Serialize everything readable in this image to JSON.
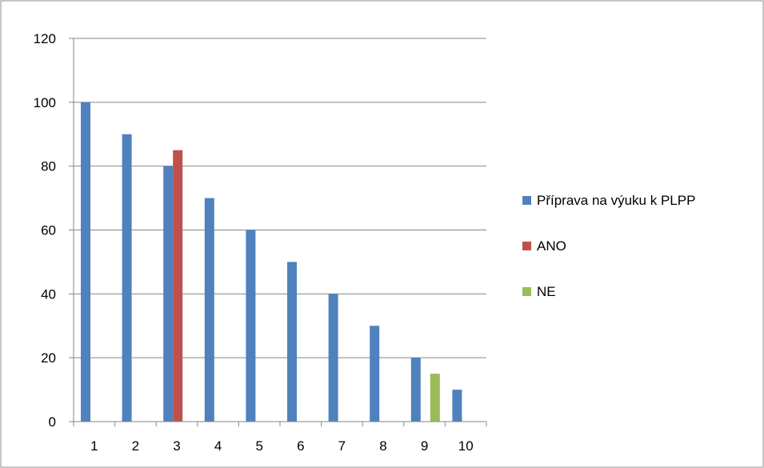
{
  "chart_data": {
    "type": "bar",
    "categories": [
      "1",
      "2",
      "3",
      "4",
      "5",
      "6",
      "7",
      "8",
      "9",
      "10"
    ],
    "series": [
      {
        "name": "Příprava na výuku k PLPP",
        "color": "#4f81bd",
        "values": [
          100,
          90,
          80,
          70,
          60,
          50,
          40,
          30,
          20,
          10
        ]
      },
      {
        "name": "ANO",
        "color": "#c0504d",
        "values": [
          null,
          null,
          85,
          null,
          null,
          null,
          null,
          null,
          null,
          null
        ]
      },
      {
        "name": "NE",
        "color": "#9bbb59",
        "values": [
          null,
          null,
          null,
          null,
          null,
          null,
          null,
          null,
          15,
          null
        ]
      }
    ],
    "y_ticks": [
      "0",
      "20",
      "40",
      "60",
      "80",
      "100",
      "120"
    ],
    "ylim": [
      0,
      120
    ],
    "grid": true,
    "legend_position": "right"
  }
}
